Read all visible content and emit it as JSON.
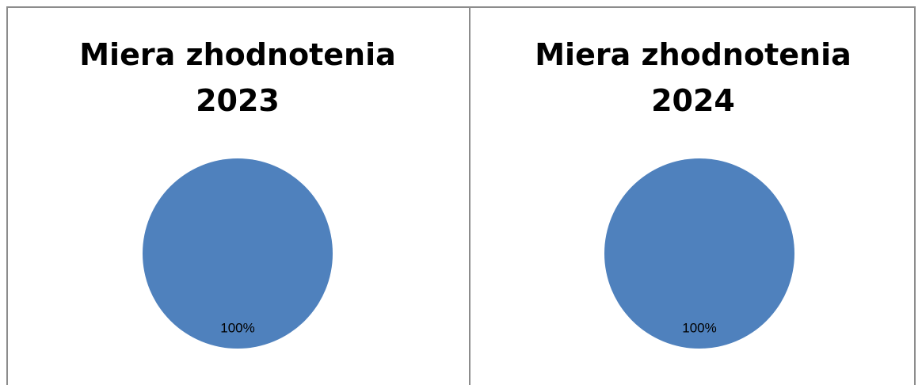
{
  "chart_data": [
    {
      "type": "pie",
      "title_line1": "Miera zhodnotenia",
      "title_line2": "2023",
      "slices": [
        {
          "value": 100,
          "label": "100%",
          "color": "#4f81bd"
        }
      ]
    },
    {
      "type": "pie",
      "title_line1": "Miera zhodnotenia",
      "title_line2": "2024",
      "slices": [
        {
          "value": 100,
          "label": "100%",
          "color": "#4f81bd"
        }
      ]
    }
  ]
}
